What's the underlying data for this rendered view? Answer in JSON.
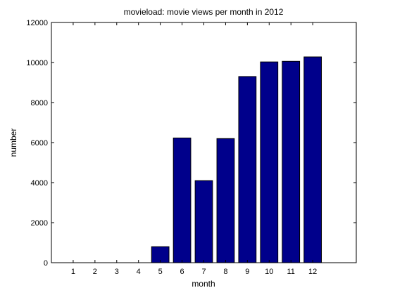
{
  "chart_data": {
    "type": "bar",
    "title": "movieload: movie views per month in 2012",
    "xlabel": "month",
    "ylabel": "number",
    "categories": [
      "1",
      "2",
      "3",
      "4",
      "5",
      "6",
      "7",
      "8",
      "9",
      "10",
      "11",
      "12"
    ],
    "values": [
      0,
      0,
      0,
      0,
      800,
      6230,
      4100,
      6200,
      9300,
      10030,
      10060,
      10280
    ],
    "xlim": [
      0,
      14
    ],
    "ylim": [
      0,
      12000
    ],
    "yticks": [
      0,
      2000,
      4000,
      6000,
      8000,
      10000,
      12000
    ],
    "yticklabels": [
      "0",
      "2000",
      "4000",
      "6000",
      "8000",
      "10000",
      "12000"
    ],
    "grid": false,
    "legend": "none",
    "bar_color": "#00008B",
    "bar_edge_color": "#000000"
  }
}
